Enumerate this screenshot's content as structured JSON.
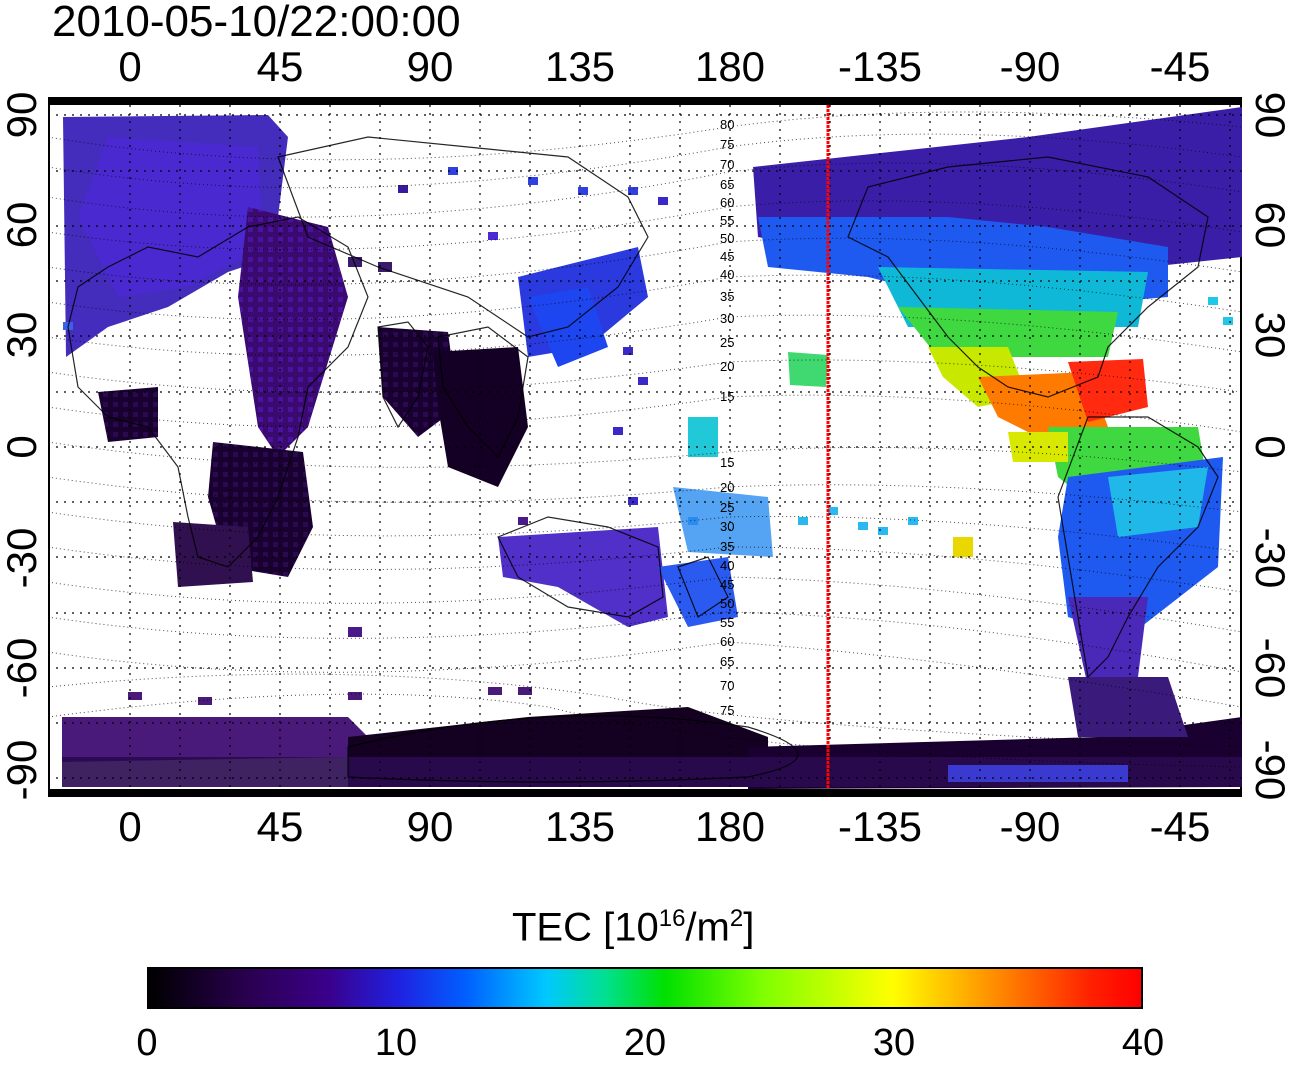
{
  "title": "2010-05-10/22:00:00",
  "x_ticks_top": [
    "0",
    "45",
    "90",
    "135",
    "180",
    "-135",
    "-90",
    "-45"
  ],
  "x_ticks_bottom": [
    "0",
    "45",
    "90",
    "135",
    "180",
    "-135",
    "-90",
    "-45"
  ],
  "y_ticks_left": [
    "90",
    "60",
    "30",
    "0",
    "-30",
    "-60",
    "-90"
  ],
  "y_ticks_right": [
    "90",
    "60",
    "30",
    "0",
    "-30",
    "-60",
    "-90"
  ],
  "contour_labels": [
    "80",
    "75",
    "70",
    "65",
    "60",
    "55",
    "50",
    "45",
    "40",
    "35",
    "30",
    "25",
    "20",
    "15",
    "15",
    "20",
    "25",
    "30",
    "35",
    "40",
    "45",
    "50",
    "55",
    "60",
    "65",
    "70",
    "75"
  ],
  "colorbar": {
    "title_main": "TEC  [10",
    "title_sup1": "16",
    "title_mid": "/m",
    "title_sup2": "2",
    "title_end": "]",
    "ticks": [
      "0",
      "10",
      "20",
      "30",
      "40"
    ],
    "range": [
      0,
      40
    ]
  },
  "colors": {
    "terminator_line": "#ff0000",
    "frame": "#000000",
    "grid": "#000000"
  }
}
